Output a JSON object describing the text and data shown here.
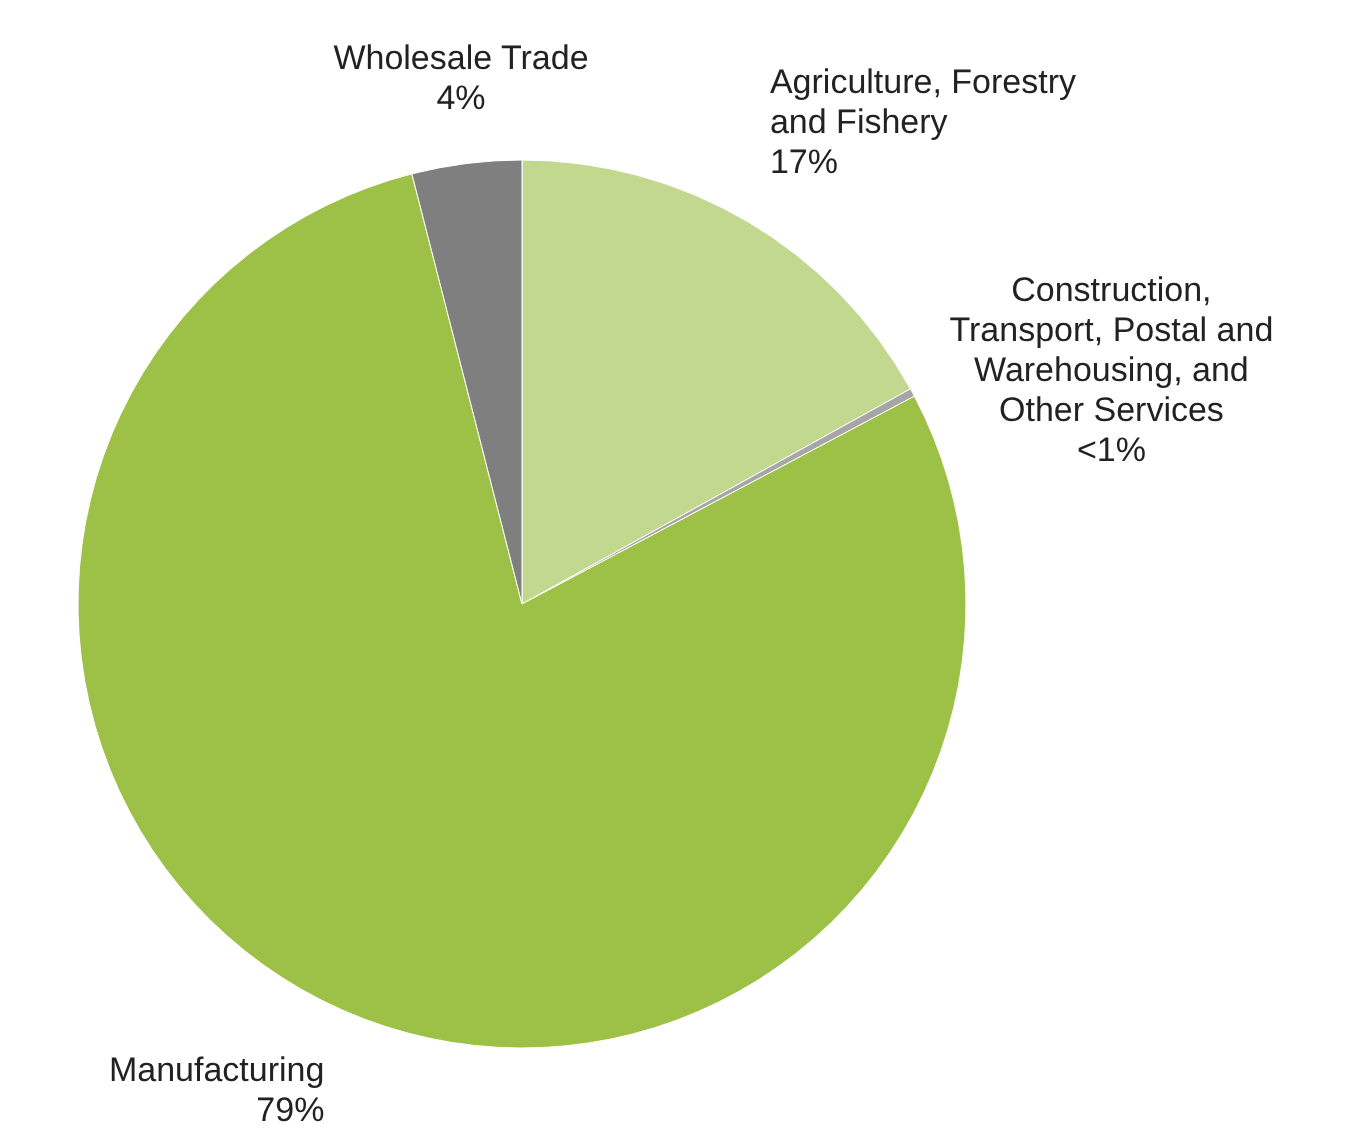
{
  "chart_data": {
    "type": "pie",
    "categories": [
      "Agriculture, Forestry and Fishery",
      "Construction, Transport, Postal and Warehousing, and Other Services",
      "Manufacturing",
      "Wholesale Trade"
    ],
    "values": [
      17,
      0.3,
      79,
      4
    ],
    "value_labels": [
      "17%",
      "<1%",
      "79%",
      "4%"
    ],
    "colors": [
      "#c3d88f",
      "#a6a6a6",
      "#9dc147",
      "#7f7f7f"
    ]
  }
}
